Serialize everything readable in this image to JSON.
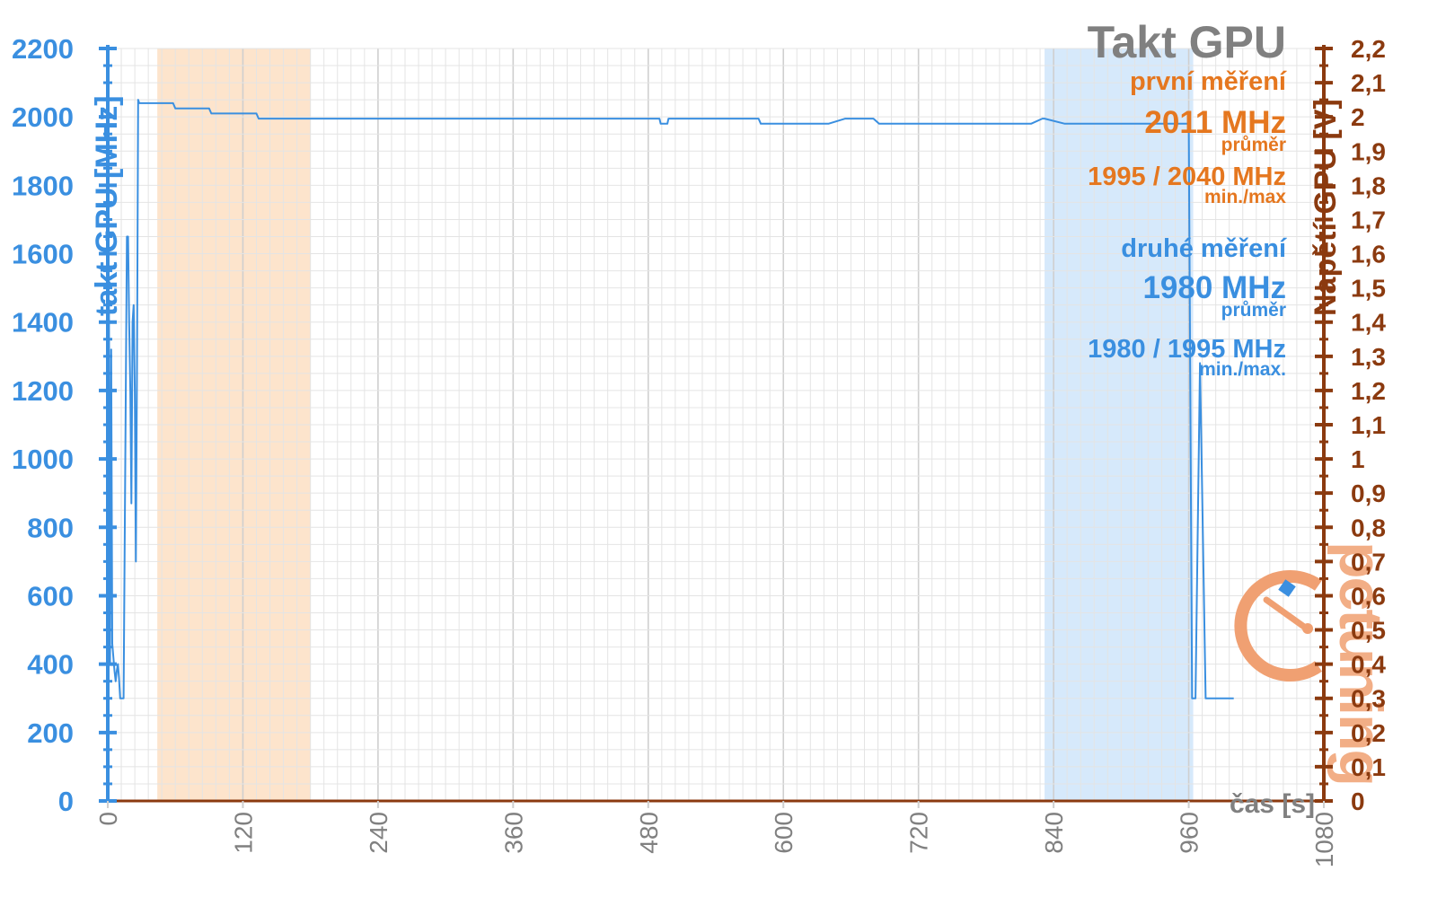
{
  "chart_data": {
    "type": "line",
    "title": "Takt GPU",
    "ylabel": "takt GPU [MHz]",
    "y2label": "Napětí GPU [V]",
    "xlabel": "čas [s]",
    "xlim": [
      0,
      1080
    ],
    "ylim": [
      0,
      2200
    ],
    "y2lim": [
      0,
      2.2
    ],
    "x_ticks": [
      "0",
      "120",
      "240",
      "360",
      "480",
      "600",
      "720",
      "840",
      "960",
      "1080"
    ],
    "y_ticks": [
      "0",
      "200",
      "400",
      "600",
      "800",
      "1000",
      "1200",
      "1400",
      "1600",
      "1800",
      "2000",
      "2200"
    ],
    "y2_ticks": [
      "0",
      "0,1",
      "0,2",
      "0,3",
      "0,4",
      "0,5",
      "0,6",
      "0,7",
      "0,8",
      "0,9",
      "1",
      "1,1",
      "1,2",
      "1,3",
      "1,4",
      "1,5",
      "1,6",
      "1,7",
      "1,8",
      "1,9",
      "2",
      "2,1",
      "2,2"
    ],
    "grid": true,
    "highlight_regions": [
      {
        "from": 44,
        "to": 180,
        "color": "#fde4cc"
      },
      {
        "from": 832,
        "to": 964,
        "color": "#d6e9fb"
      }
    ],
    "series": [
      {
        "color": "#3a8fe0",
        "x": [
          0,
          1,
          2,
          3,
          4,
          6,
          7,
          8,
          9,
          10,
          11,
          14,
          17,
          18,
          19,
          20,
          21,
          22,
          23,
          24,
          25,
          26,
          27,
          28,
          35,
          58,
          60,
          80,
          90,
          92,
          110,
          132,
          134,
          490,
          491,
          492,
          497,
          498,
          578,
          580,
          600,
          640,
          655,
          660,
          670,
          680,
          685,
          700,
          820,
          830,
          832,
          850,
          900,
          920,
          960,
          963,
          966,
          970,
          975,
          978,
          980,
          990,
          1000
        ],
        "y": [
          300,
          1460,
          400,
          1320,
          460,
          380,
          350,
          380,
          400,
          360,
          300,
          300,
          1650,
          1650,
          1400,
          1200,
          870,
          1400,
          1450,
          1200,
          700,
          1300,
          2050,
          2040,
          2040,
          2040,
          2025,
          2025,
          2025,
          2010,
          2010,
          2010,
          1995,
          1995,
          1980,
          1980,
          1980,
          1995,
          1995,
          1980,
          1980,
          1980,
          1995,
          1995,
          1995,
          1995,
          1980,
          1980,
          1980,
          1995,
          1995,
          1980,
          1980,
          1980,
          1980,
          300,
          300,
          1280,
          300,
          300,
          300,
          300,
          300
        ]
      }
    ],
    "annotations": {
      "first_label": "první měření",
      "first_avg": "2011 MHz",
      "first_avg_caption": "průměr",
      "first_minmax": "1995 / 2040 MHz",
      "first_minmax_caption": "min./max",
      "second_label": "druhé měření",
      "second_avg": "1980 MHz",
      "second_avg_caption": "průměr",
      "second_minmax": "1980 / 1995 MHz",
      "second_minmax_caption": "min./max."
    },
    "colors": {
      "left_axis": "#3a8fe0",
      "right_axis": "#8b3a0f",
      "first": "#e5771f",
      "second": "#3a8fe0",
      "title": "#808080",
      "grid": "#e4e4e4",
      "grid_major": "#cfcfcf",
      "x_tick": "#808080"
    },
    "watermark": "pctuning"
  }
}
